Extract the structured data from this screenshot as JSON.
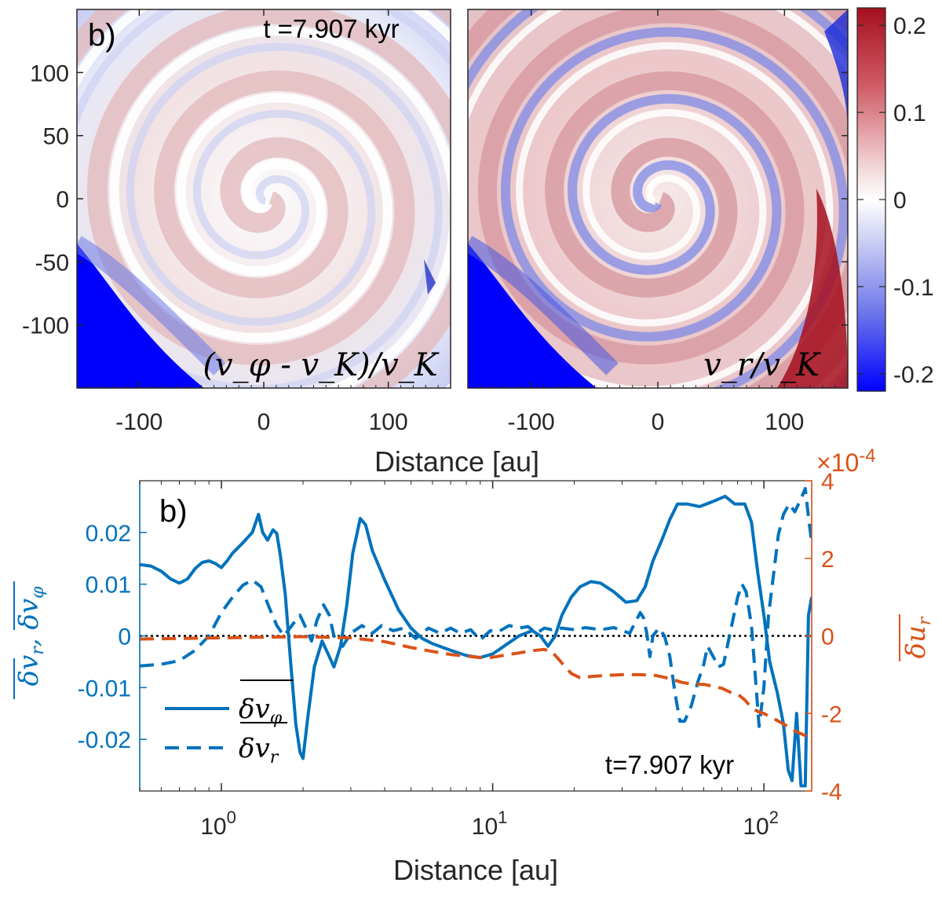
{
  "top": {
    "panel_label": "b)",
    "time_label": "t =7.907 kyr",
    "xlabel": "Distance [au]",
    "xticks": [
      "-100",
      "0",
      "100"
    ],
    "yticks": [
      "100",
      "50",
      "0",
      "-50",
      "-100"
    ],
    "left_map_label": "(v_φ - v_K)/v_K",
    "right_map_label": "v_r/v_K",
    "colorbar": {
      "ticks": [
        "0.2",
        "0.1",
        "0",
        "-0.1",
        "-0.2"
      ],
      "range": [
        -0.22,
        0.22
      ]
    },
    "axis_range_au": [
      -150,
      150
    ]
  },
  "chart_data": {
    "type": "line",
    "title": "",
    "panel_label": "b)",
    "annotation": "t=7.907 kyr",
    "xlabel": "Distance [au]",
    "xscale": "log",
    "xlim": [
      0.5,
      150
    ],
    "xticks": [
      "10",
      "10",
      "10"
    ],
    "xtick_exponents": [
      "0",
      "1",
      "2"
    ],
    "ylabel_left": "δv_r, δv_φ (overlined)",
    "ylim_left": [
      -0.03,
      0.03
    ],
    "yticks_left": [
      "0.02",
      "0.01",
      "0",
      "-0.01",
      "-0.02"
    ],
    "ylabel_right": "δu_r (overlined)",
    "ylim_right": [
      -4,
      4
    ],
    "yticks_right": [
      "4",
      "2",
      "0",
      "-2",
      "-4"
    ],
    "right_multiplier": "×10",
    "right_multiplier_exp": "-4",
    "legend": [
      "δv_φ",
      "δv_r"
    ],
    "colors": {
      "left_axis": "#0072BD",
      "right_axis": "#D95319",
      "zero_line": "#000000"
    },
    "series": [
      {
        "name": "δv_φ (mean)",
        "axis": "left",
        "style": "solid",
        "points": [
          [
            0.5,
            0.0138
          ],
          [
            0.55,
            0.0135
          ],
          [
            0.6,
            0.0125
          ],
          [
            0.65,
            0.011
          ],
          [
            0.7,
            0.0102
          ],
          [
            0.75,
            0.011
          ],
          [
            0.8,
            0.013
          ],
          [
            0.85,
            0.0142
          ],
          [
            0.9,
            0.0145
          ],
          [
            0.95,
            0.014
          ],
          [
            1.0,
            0.0132
          ],
          [
            1.05,
            0.0145
          ],
          [
            1.1,
            0.016
          ],
          [
            1.2,
            0.018
          ],
          [
            1.3,
            0.02
          ],
          [
            1.37,
            0.0235
          ],
          [
            1.42,
            0.02
          ],
          [
            1.48,
            0.0185
          ],
          [
            1.55,
            0.0205
          ],
          [
            1.6,
            0.0198
          ],
          [
            1.65,
            0.0155
          ],
          [
            1.72,
            0.008
          ],
          [
            1.8,
            -0.005
          ],
          [
            1.88,
            -0.017
          ],
          [
            1.95,
            -0.0225
          ],
          [
            2.0,
            -0.0237
          ],
          [
            2.08,
            -0.016
          ],
          [
            2.2,
            -0.006
          ],
          [
            2.35,
            -0.001
          ],
          [
            2.5,
            -0.004
          ],
          [
            2.6,
            -0.006
          ],
          [
            2.75,
            -0.002
          ],
          [
            2.9,
            0.006
          ],
          [
            3.05,
            0.016
          ],
          [
            3.25,
            0.0227
          ],
          [
            3.4,
            0.0215
          ],
          [
            3.6,
            0.0165
          ],
          [
            4.0,
            0.0108
          ],
          [
            4.5,
            0.005
          ],
          [
            5.0,
            0.0015
          ],
          [
            5.5,
            -0.0005
          ],
          [
            6.0,
            -0.0015
          ],
          [
            7.0,
            -0.0028
          ],
          [
            8.0,
            -0.0038
          ],
          [
            9.0,
            -0.0042
          ],
          [
            10.0,
            -0.0035
          ],
          [
            11.0,
            -0.002
          ],
          [
            12.5,
            0.0
          ],
          [
            14.0,
            0.001
          ],
          [
            15.0,
            0.0
          ],
          [
            16.0,
            -0.002
          ],
          [
            17.0,
            0.0
          ],
          [
            18.0,
            0.004
          ],
          [
            19.5,
            0.0075
          ],
          [
            21.0,
            0.0095
          ],
          [
            23.0,
            0.0105
          ],
          [
            25.0,
            0.0102
          ],
          [
            28.0,
            0.0085
          ],
          [
            31.0,
            0.0065
          ],
          [
            34.0,
            0.0068
          ],
          [
            36.5,
            0.0095
          ],
          [
            39.0,
            0.0145
          ],
          [
            42.0,
            0.0185
          ],
          [
            45.0,
            0.0225
          ],
          [
            48.0,
            0.0255
          ],
          [
            52.0,
            0.0255
          ],
          [
            58.0,
            0.025
          ],
          [
            65.0,
            0.026
          ],
          [
            72.0,
            0.027
          ],
          [
            78.0,
            0.0255
          ],
          [
            85.0,
            0.0255
          ],
          [
            90.0,
            0.022
          ],
          [
            95.0,
            0.012
          ],
          [
            100.0,
            0.004
          ],
          [
            105.0,
            -0.005
          ],
          [
            112.0,
            -0.011
          ],
          [
            118.0,
            -0.017
          ],
          [
            123.0,
            -0.026
          ],
          [
            127.0,
            -0.028
          ],
          [
            132.0,
            -0.015
          ],
          [
            137.0,
            -0.029
          ],
          [
            142.0,
            -0.029
          ],
          [
            146.0,
            0.004
          ],
          [
            150.0,
            0.0075
          ]
        ]
      },
      {
        "name": "δv_r (mean)",
        "axis": "left",
        "style": "dashed",
        "points": [
          [
            0.5,
            -0.0058
          ],
          [
            0.6,
            -0.0055
          ],
          [
            0.7,
            -0.0048
          ],
          [
            0.8,
            -0.0028
          ],
          [
            0.9,
            0.0
          ],
          [
            1.0,
            0.0045
          ],
          [
            1.1,
            0.0075
          ],
          [
            1.2,
            0.0098
          ],
          [
            1.3,
            0.0108
          ],
          [
            1.4,
            0.0095
          ],
          [
            1.5,
            0.0055
          ],
          [
            1.6,
            0.002
          ],
          [
            1.7,
            0.0
          ],
          [
            1.85,
            0.0025
          ],
          [
            1.95,
            0.004
          ],
          [
            2.05,
            0.0015
          ],
          [
            2.15,
            -0.001
          ],
          [
            2.25,
            0.003
          ],
          [
            2.38,
            0.006
          ],
          [
            2.5,
            0.004
          ],
          [
            2.6,
            0.0
          ],
          [
            2.8,
            -0.002
          ],
          [
            3.0,
            0.0005
          ],
          [
            3.3,
            0.002
          ],
          [
            3.6,
            0.0005
          ],
          [
            3.9,
            0.002
          ],
          [
            4.3,
            0.001
          ],
          [
            4.7,
            0.0015
          ],
          [
            5.2,
            -0.0005
          ],
          [
            5.8,
            0.0015
          ],
          [
            6.4,
            0.0005
          ],
          [
            7.0,
            0.0015
          ],
          [
            7.6,
            0.0005
          ],
          [
            8.3,
            0.0012
          ],
          [
            9.0,
            -0.0008
          ],
          [
            9.8,
            0.001
          ],
          [
            10.5,
            0.0008
          ],
          [
            11.5,
            0.002
          ],
          [
            12.5,
            0.0015
          ],
          [
            13.5,
            0.0018
          ],
          [
            14.5,
            0.0005
          ],
          [
            15.5,
            0.0015
          ],
          [
            16.5,
            0.0012
          ],
          [
            18.0,
            0.0015
          ],
          [
            20.0,
            0.0012
          ],
          [
            22.0,
            0.0016
          ],
          [
            25.0,
            0.0012
          ],
          [
            28.0,
            0.0016
          ],
          [
            32.0,
            0.0005
          ],
          [
            35.0,
            0.0045
          ],
          [
            36.0,
            0.0035
          ],
          [
            37.0,
            0.0005
          ],
          [
            38.0,
            -0.004
          ],
          [
            39.0,
            0.0
          ],
          [
            41.0,
            0.0015
          ],
          [
            43.0,
            0.0
          ],
          [
            45.0,
            -0.004
          ],
          [
            47.0,
            -0.011
          ],
          [
            49.0,
            -0.0165
          ],
          [
            51.0,
            -0.0165
          ],
          [
            54.0,
            -0.0135
          ],
          [
            57.0,
            -0.009
          ],
          [
            60.0,
            -0.0055
          ],
          [
            62.0,
            -0.002
          ],
          [
            65.0,
            -0.004
          ],
          [
            68.0,
            -0.006
          ],
          [
            71.0,
            -0.0055
          ],
          [
            75.0,
            0.0005
          ],
          [
            80.0,
            0.0075
          ],
          [
            83.0,
            0.01
          ],
          [
            86.0,
            0.0085
          ],
          [
            90.0,
            0.002
          ],
          [
            93.0,
            -0.008
          ],
          [
            96.0,
            -0.0175
          ],
          [
            100.0,
            -0.01
          ],
          [
            104.0,
            0.004
          ],
          [
            108.0,
            0.011
          ],
          [
            113.0,
            0.0195
          ],
          [
            118.0,
            0.0235
          ],
          [
            124.0,
            0.0255
          ],
          [
            130.0,
            0.024
          ],
          [
            137.0,
            0.0265
          ],
          [
            142.0,
            0.0285
          ],
          [
            146.0,
            0.023
          ],
          [
            150.0,
            0.018
          ]
        ]
      },
      {
        "name": "δu_r (mean)",
        "axis": "right",
        "style": "dashed",
        "points": [
          [
            0.5,
            -0.08
          ],
          [
            1.0,
            -0.05
          ],
          [
            1.5,
            -0.03
          ],
          [
            2.0,
            -0.02
          ],
          [
            3.0,
            -0.05
          ],
          [
            4.0,
            -0.15
          ],
          [
            5.0,
            -0.3
          ],
          [
            6.0,
            -0.4
          ],
          [
            7.0,
            -0.48
          ],
          [
            8.0,
            -0.52
          ],
          [
            9.0,
            -0.56
          ],
          [
            10.0,
            -0.55
          ],
          [
            11.0,
            -0.5
          ],
          [
            12.5,
            -0.44
          ],
          [
            14.0,
            -0.38
          ],
          [
            15.5,
            -0.35
          ],
          [
            16.5,
            -0.4
          ],
          [
            17.5,
            -0.6
          ],
          [
            18.5,
            -0.8
          ],
          [
            19.5,
            -0.97
          ],
          [
            21.0,
            -1.08
          ],
          [
            23.0,
            -1.05
          ],
          [
            26.0,
            -1.02
          ],
          [
            30.0,
            -1.0
          ],
          [
            35.0,
            -1.0
          ],
          [
            40.0,
            -1.02
          ],
          [
            45.0,
            -1.1
          ],
          [
            50.0,
            -1.2
          ],
          [
            55.0,
            -1.25
          ],
          [
            60.0,
            -1.25
          ],
          [
            65.0,
            -1.3
          ],
          [
            70.0,
            -1.35
          ],
          [
            75.0,
            -1.45
          ],
          [
            80.0,
            -1.5
          ],
          [
            85.0,
            -1.65
          ],
          [
            90.0,
            -1.85
          ],
          [
            95.0,
            -1.95
          ],
          [
            100.0,
            -2.0
          ],
          [
            110.0,
            -2.15
          ],
          [
            120.0,
            -2.3
          ],
          [
            130.0,
            -2.45
          ],
          [
            140.0,
            -2.55
          ],
          [
            150.0,
            -2.65
          ]
        ]
      }
    ]
  }
}
